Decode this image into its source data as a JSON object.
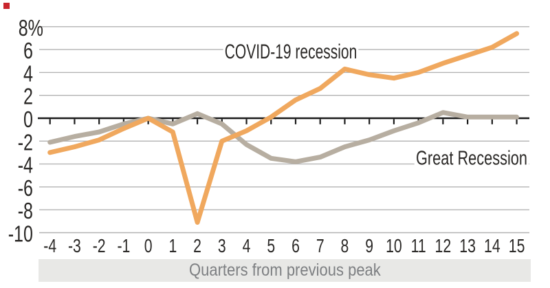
{
  "page": {
    "background": "#ffffff"
  },
  "brand": {
    "red_mark_color": "#c9252d"
  },
  "chart_data": {
    "type": "line",
    "title": "",
    "xlabel": "Quarters from previous peak",
    "ylabel": "",
    "x": [
      -4,
      -3,
      -2,
      -1,
      0,
      1,
      2,
      3,
      4,
      5,
      6,
      7,
      8,
      9,
      10,
      11,
      12,
      13,
      14,
      15
    ],
    "x_tick_labels": [
      "-4",
      "-3",
      "-2",
      "-1",
      "0",
      "1",
      "2",
      "3",
      "4",
      "5",
      "6",
      "7",
      "8",
      "9",
      "10",
      "11",
      "12",
      "13",
      "14",
      "15"
    ],
    "series": [
      {
        "name": "COVID-19 recession",
        "color": "#f0a85e",
        "values": [
          -3.0,
          -2.5,
          -1.9,
          -0.9,
          0.0,
          -1.2,
          -9.1,
          -2.0,
          -1.1,
          0.1,
          1.6,
          2.6,
          4.3,
          3.8,
          3.5,
          4.0,
          4.8,
          5.5,
          6.2,
          7.4
        ]
      },
      {
        "name": "Great Recession",
        "color": "#b7aea1",
        "values": [
          -2.1,
          -1.6,
          -1.2,
          -0.5,
          0.0,
          -0.5,
          0.4,
          -0.5,
          -2.3,
          -3.5,
          -3.8,
          -3.4,
          -2.5,
          -1.9,
          -1.1,
          -0.4,
          0.5,
          0.1,
          0.1,
          0.1
        ]
      }
    ],
    "y_ticks": [
      8,
      6,
      4,
      2,
      0,
      -2,
      -4,
      -6,
      -8,
      -10
    ],
    "y_tick_labels": [
      "8%",
      "6",
      "4",
      "2",
      "0",
      "-2",
      "-4",
      "-6",
      "-8",
      "-10"
    ],
    "ylim": [
      -10,
      8
    ],
    "xlim": [
      -4,
      15
    ],
    "grid": "horizontal-only",
    "legend_position": "inline-annotations",
    "colors": {
      "axis": "#1a1a1a",
      "gridline": "#b3b3b3",
      "tick_label": "#2b2927",
      "annotation_text": "#2b2927",
      "xlabel_bar_bg": "#e8e8e6",
      "xlabel_text": "#7d7f82"
    }
  }
}
